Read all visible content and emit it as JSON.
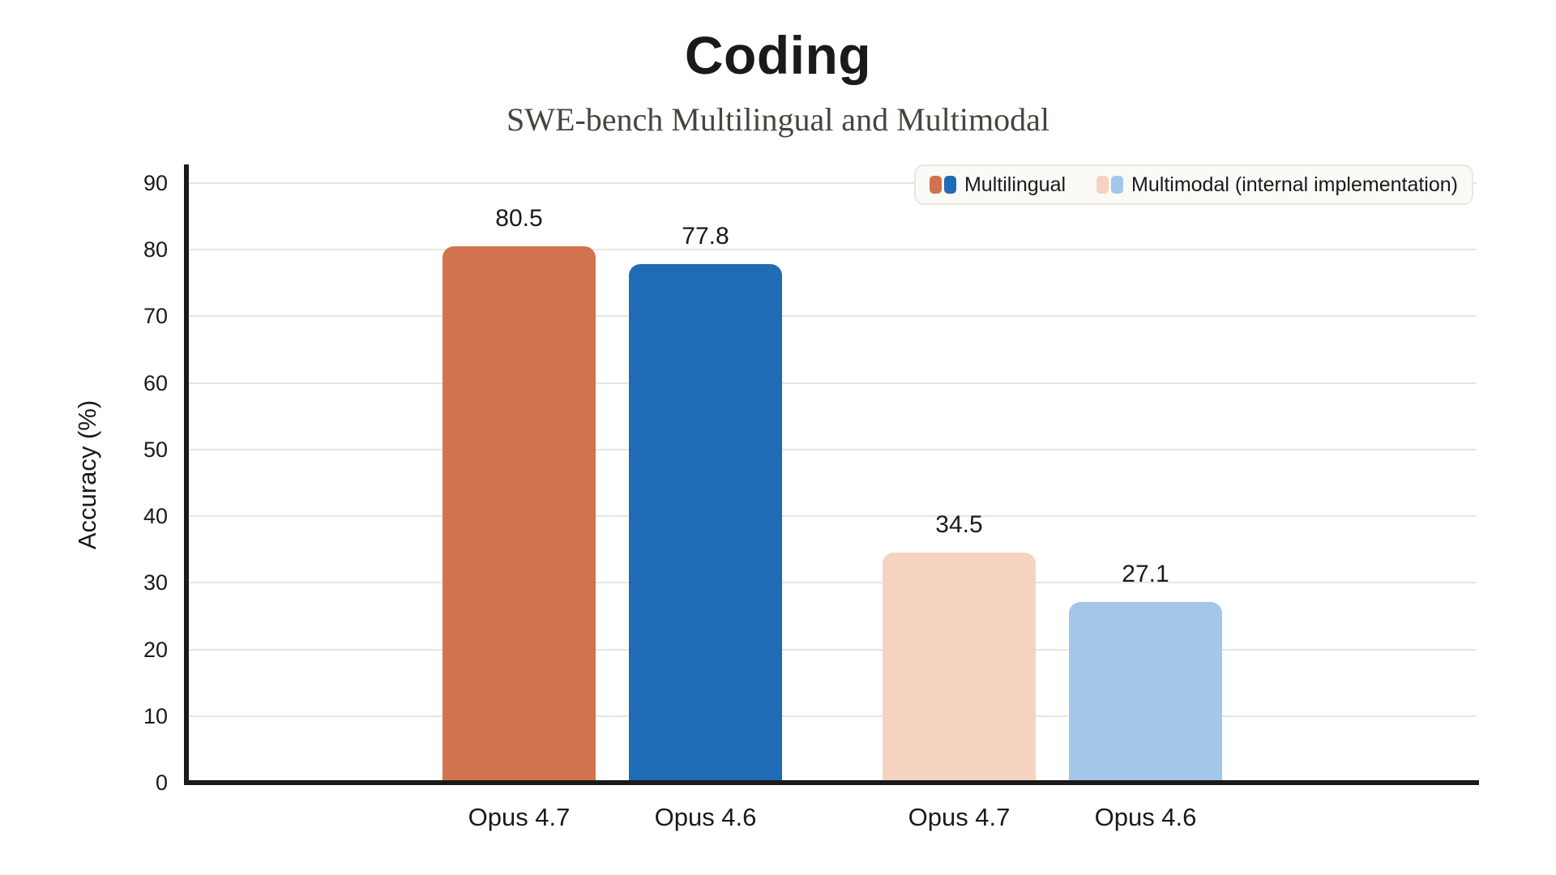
{
  "chart_data": {
    "type": "bar",
    "title": "Coding",
    "subtitle": "SWE-bench Multilingual and Multimodal",
    "xlabel": "",
    "ylabel": "Accuracy (%)",
    "ylim": [
      0,
      90
    ],
    "yticks": [
      0,
      10,
      20,
      30,
      40,
      50,
      60,
      70,
      80,
      90
    ],
    "grid": true,
    "legend_position": "top-right",
    "categories": [
      "Opus 4.7",
      "Opus 4.6",
      "Opus 4.7",
      "Opus 4.6"
    ],
    "bars": [
      {
        "category": "Opus 4.7",
        "value": 80.5,
        "value_label": "80.5",
        "series": "Multilingual",
        "color": "#d1734e"
      },
      {
        "category": "Opus 4.6",
        "value": 77.8,
        "value_label": "77.8",
        "series": "Multilingual",
        "color": "#1f6cb4"
      },
      {
        "category": "Opus 4.7",
        "value": 34.5,
        "value_label": "34.5",
        "series": "Multimodal (internal implementation)",
        "color": "#f6d3c1"
      },
      {
        "category": "Opus 4.6",
        "value": 27.1,
        "value_label": "27.1",
        "series": "Multimodal (internal implementation)",
        "color": "#a4c6e8"
      }
    ],
    "series": [
      {
        "name": "Multilingual",
        "values": [
          80.5,
          77.8
        ],
        "colors": [
          "#d1734e",
          "#1f6cb4"
        ]
      },
      {
        "name": "Multimodal (internal implementation)",
        "values": [
          34.5,
          27.1
        ],
        "colors": [
          "#f6d3c1",
          "#a4c6e8"
        ]
      }
    ],
    "legend": {
      "items": [
        {
          "label": "Multilingual",
          "swatch_colors": [
            "#d1734e",
            "#1f6cb4"
          ]
        },
        {
          "label": "Multimodal (internal implementation)",
          "swatch_colors": [
            "#f6d3c1",
            "#a4c6e8"
          ]
        }
      ]
    }
  },
  "colors": {
    "background": "#ffffff",
    "axis": "#1a1a1a",
    "gridline": "#e8e5e0",
    "title_text": "#1a1a19",
    "subtitle_text": "#47443e",
    "tick_text": "#1a1a1a",
    "legend_background": "#fbfaf6",
    "legend_border": "#eae7e1"
  }
}
